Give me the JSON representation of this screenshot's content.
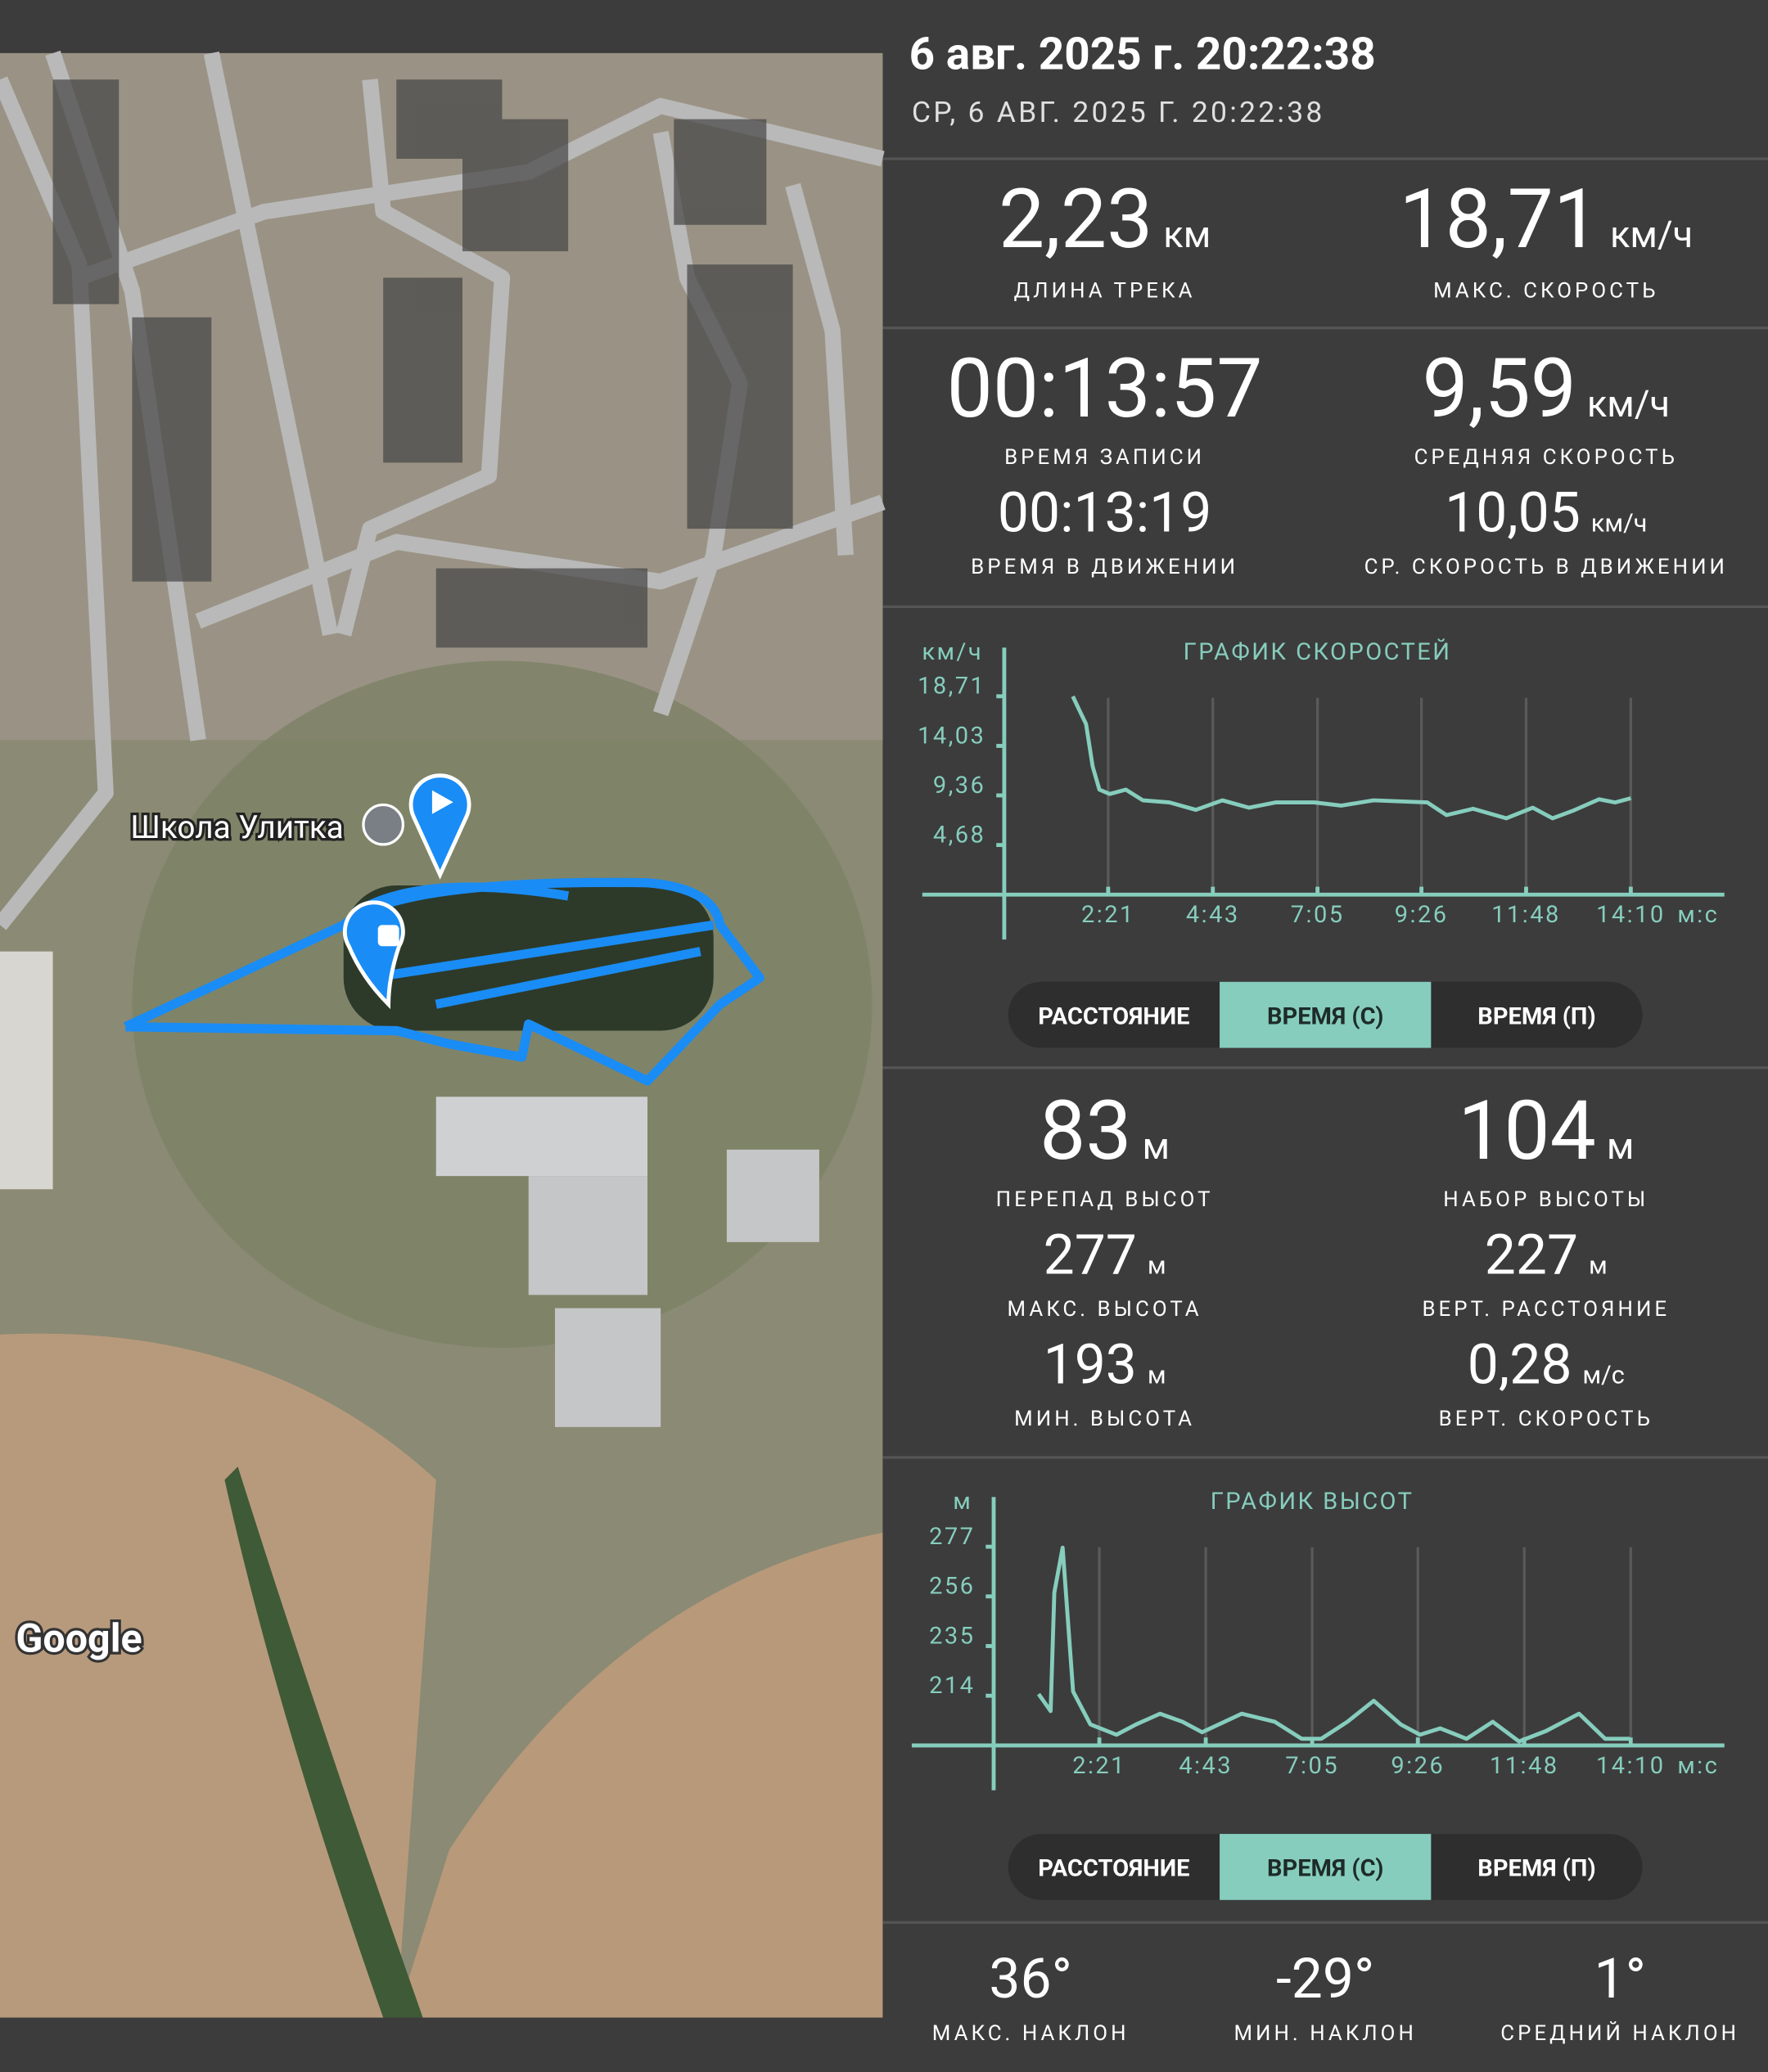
{
  "header": {
    "title": "6 авг. 2025 г. 20:22:38",
    "subtitle": "СР, 6 АВГ. 2025 Г. 20:22:38"
  },
  "map": {
    "place_label": "Школа Улитка",
    "attribution": "Google"
  },
  "track_stats": [
    {
      "value": "2,23",
      "unit": "км",
      "label": "ДЛИНА ТРЕКА"
    },
    {
      "value": "18,71",
      "unit": "км/ч",
      "label": "МАКС. СКОРОСТЬ"
    },
    {
      "value": "00:13:57",
      "label": "ВРЕМЯ ЗАПИСИ"
    },
    {
      "value": "9,59",
      "unit": "км/ч",
      "label": "СРЕДНЯЯ СКОРОСТЬ"
    },
    {
      "value": "00:13:19",
      "label": "ВРЕМЯ В ДВИЖЕНИИ"
    },
    {
      "value": "10,05",
      "unit": "км/ч",
      "label": "СР. СКОРОСТЬ В ДВИЖЕНИИ"
    }
  ],
  "speed_chart": {
    "type": "line",
    "title": "ГРАФИК СКОРОСТЕЙ",
    "y_label": "км/ч",
    "x_unit": "м:с",
    "color": "#86cdbd",
    "xlim": [
      0,
      977
    ],
    "ylim": [
      0,
      23.3
    ],
    "xticks": [
      {
        "value": 141,
        "label": "2:21"
      },
      {
        "value": 283,
        "label": "4:43"
      },
      {
        "value": 425,
        "label": "7:05"
      },
      {
        "value": 566,
        "label": "9:26"
      },
      {
        "value": 708,
        "label": "11:48"
      },
      {
        "value": 850,
        "label": "14:10"
      }
    ],
    "yticks": [
      {
        "value": 4.68,
        "label": "4,68"
      },
      {
        "value": 9.36,
        "label": "9,36"
      },
      {
        "value": 14.03,
        "label": "14,03"
      },
      {
        "value": 18.71,
        "label": "18,71"
      }
    ],
    "x": [
      93,
      104,
      111,
      120,
      129,
      143,
      165,
      188,
      224,
      260,
      296,
      332,
      368,
      421,
      457,
      501,
      574,
      600,
      636,
      681,
      717,
      744,
      771,
      807,
      829,
      850
    ],
    "values": [
      18.7,
      17.1,
      16.1,
      12.1,
      9.9,
      9.5,
      9.9,
      8.9,
      8.7,
      8.0,
      8.9,
      8.2,
      8.7,
      8.7,
      8.4,
      8.9,
      8.7,
      7.5,
      8.1,
      7.2,
      8.2,
      7.2,
      7.9,
      9.0,
      8.7,
      9.1
    ]
  },
  "speed_tabs": {
    "labels": [
      "РАССТОЯНИЕ",
      "ВРЕМЯ (С)",
      "ВРЕМЯ (П)"
    ],
    "active": 1
  },
  "elevation_stats": [
    {
      "value": "83",
      "unit": "м",
      "label": "ПЕРЕПАД ВЫСОТ"
    },
    {
      "value": "104",
      "unit": "м",
      "label": "НАБОР ВЫСОТЫ"
    },
    {
      "value": "277",
      "unit": "м",
      "label": "МАКС. ВЫСОТА"
    },
    {
      "value": "227",
      "unit": "м",
      "label": "ВЕРТ. РАССТОЯНИЕ"
    },
    {
      "value": "193",
      "unit": "м",
      "label": "МИН. ВЫСОТА"
    },
    {
      "value": "0,28",
      "unit": "м/с",
      "label": "ВЕРТ. СКОРОСТЬ"
    }
  ],
  "elevation_chart": {
    "type": "line",
    "title": "ГРАФИК ВЫСОТ",
    "y_label": "м",
    "x_unit": "м:с",
    "color": "#86cdbd",
    "xlim": [
      0,
      975
    ],
    "ylim": [
      193,
      298
    ],
    "xticks": [
      {
        "value": 141,
        "label": "2:21"
      },
      {
        "value": 283,
        "label": "4:43"
      },
      {
        "value": 425,
        "label": "7:05"
      },
      {
        "value": 566,
        "label": "9:26"
      },
      {
        "value": 708,
        "label": "11:48"
      },
      {
        "value": 850,
        "label": "14:10"
      }
    ],
    "yticks": [
      214,
      235,
      256,
      277
    ],
    "x": [
      60,
      76,
      81,
      92,
      106,
      129,
      164,
      190,
      222,
      252,
      278,
      331,
      375,
      411,
      437,
      472,
      507,
      543,
      569,
      596,
      631,
      666,
      701,
      737,
      781,
      816,
      849
    ],
    "values": [
      214.7,
      207.5,
      257.6,
      276.6,
      215.8,
      201.9,
      197.5,
      201.9,
      206.4,
      203,
      198.6,
      206.4,
      203,
      195.8,
      195.8,
      203,
      211.9,
      201.9,
      197.5,
      200.2,
      195.8,
      203,
      194.7,
      199.1,
      206.4,
      195.8,
      195.8
    ]
  },
  "elevation_tabs": {
    "labels": [
      "РАССТОЯНИЕ",
      "ВРЕМЯ (С)",
      "ВРЕМЯ (П)"
    ],
    "active": 1
  },
  "slope_stats": [
    {
      "value": "36°",
      "label": "МАКС. НАКЛОН"
    },
    {
      "value": "-29°",
      "label": "МИН. НАКЛОН"
    },
    {
      "value": "1°",
      "label": "СРЕДНИЙ НАКЛОН"
    }
  ]
}
